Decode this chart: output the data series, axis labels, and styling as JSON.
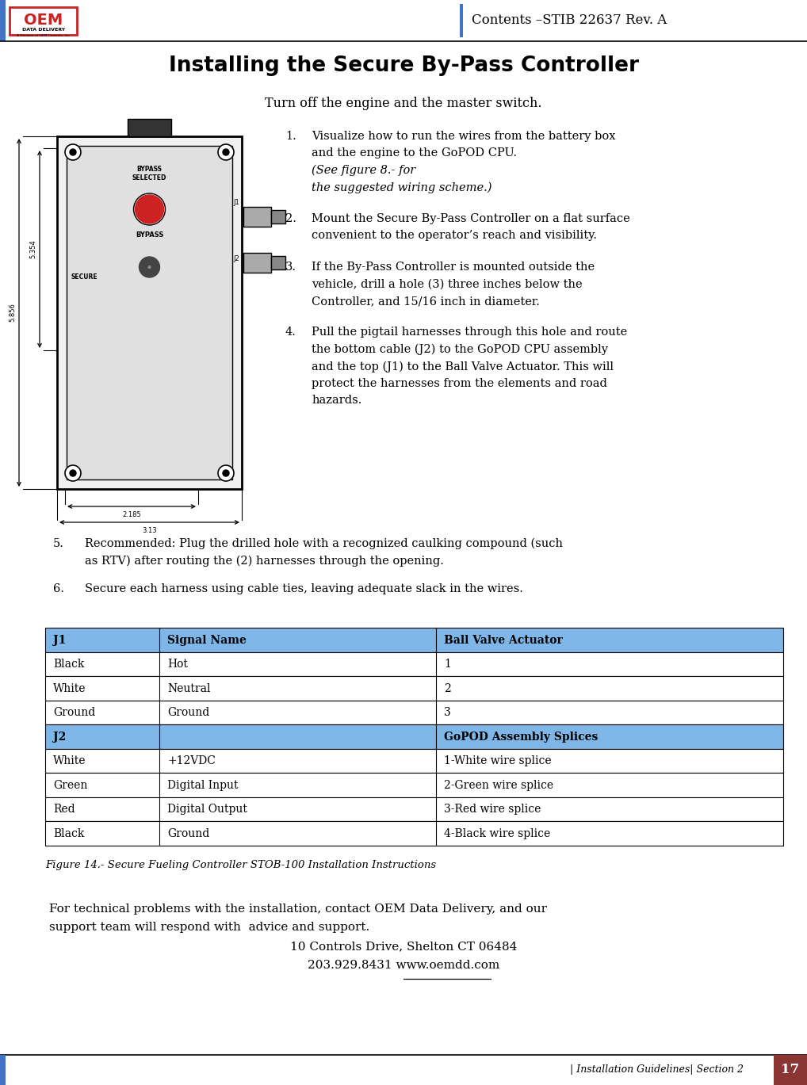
{
  "page_width": 10.18,
  "page_height": 13.69,
  "dpi": 100,
  "bg_color": "#ffffff",
  "header_line_color": "#4472C4",
  "header_text": "Contents –STIB 22637 Rev. A",
  "footer_text": "| Installation Guidelines| Section 2",
  "footer_number": "17",
  "footer_bg": "#8B3535",
  "title": "Installing the Secure By-Pass Controller",
  "subtitle": "Turn off the engine and the master switch.",
  "inst1_main": "Visualize how to run the wires from the battery box\nand the engine to the GoPOD CPU.",
  "inst1_italic": "(See figure 8.- for\nthe suggested wiring scheme.)",
  "inst2": "Mount the Secure By-Pass Controller on a flat surface\nconvenient to the operator’s reach and visibility.",
  "inst3_main": "If the By-Pass Controller is mounted outside the\nvehicle, drill a hole (3) three inches below the\nController, and 15/16 inch in diameter.",
  "inst4_main": "Pull the pigtail harnesses through this hole and route\nthe bottom cable (J2) to the GoPOD CPU assembly\nand the top (J1) to the Ball Valve Actuator. This will\nprotect the harnesses from the elements and road\nhazards.",
  "inst5": "Recommended: Plug the drilled hole with a recognized caulking compound (such\nas RTV) after routing the (2) harnesses through the opening.",
  "inst6": "Secure each harness using cable ties, leaving adequate slack in the wires.",
  "table_header_color": "#7EB6E8",
  "table_rows": [
    [
      "J1",
      "Signal Name",
      "Ball Valve Actuator",
      true
    ],
    [
      "Black",
      "Hot",
      "1",
      false
    ],
    [
      "White",
      "Neutral",
      "2",
      false
    ],
    [
      "Ground",
      "Ground",
      "3",
      false
    ],
    [
      "J2",
      "",
      "GoPOD Assembly Splices",
      true
    ],
    [
      "White",
      "+12VDC",
      "1-White wire splice",
      false
    ],
    [
      "Green",
      "Digital Input",
      "2-Green wire splice",
      false
    ],
    [
      "Red",
      "Digital Output",
      "3-Red wire splice",
      false
    ],
    [
      "Black",
      "Ground",
      "4-Black wire splice",
      false
    ]
  ],
  "figure_caption": "Figure 14.- Secure Fueling Controller STOB-100 Installation Instructions",
  "contact1": "For technical problems with the installation, contact OEM Data Delivery, and our",
  "contact2": "support team will respond with  advice and support.",
  "contact3": "10 Controls Drive, Shelton CT 06484",
  "contact4": "203.929.8431 www.oemdd.com"
}
